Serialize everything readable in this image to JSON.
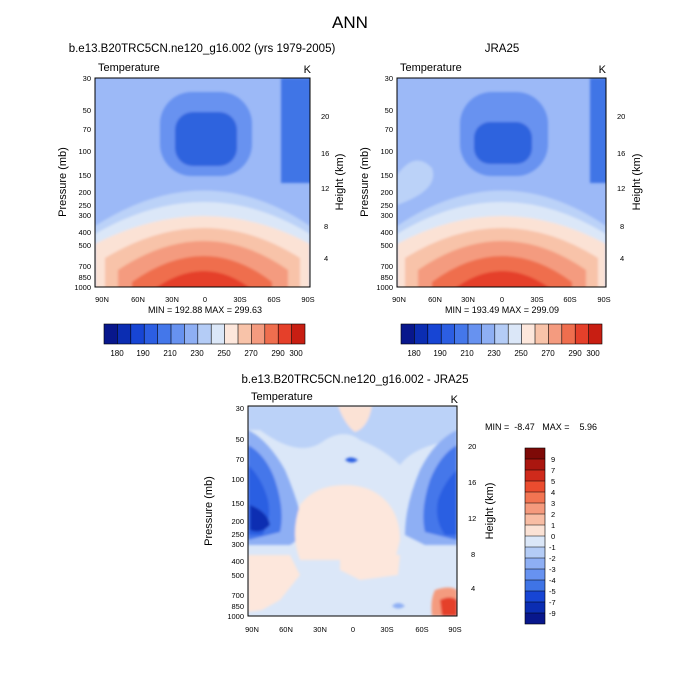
{
  "figure": {
    "title": "ANN"
  },
  "chart_data": [
    {
      "type": "heatmap",
      "title": "b.e13.B20TRC5CN.ne120_g16.002 (yrs 1979-2005)",
      "left_string": "Temperature",
      "right_string": "K",
      "ylabel": "Pressure (mb)",
      "ylabel_right": "Height (km)",
      "x_ticks": [
        "90N",
        "60N",
        "30N",
        "0",
        "30S",
        "60S",
        "90S"
      ],
      "y_ticks": [
        "30",
        "50",
        "70",
        "100",
        "150",
        "200",
        "250",
        "300",
        "400",
        "500",
        "700",
        "850",
        "1000"
      ],
      "y_right_ticks": [
        "20",
        "16",
        "12",
        "8",
        "4"
      ],
      "min_max": "MIN = 192.88   MAX = 299.63",
      "colorbar_labels": [
        "180",
        "190",
        "210",
        "230",
        "250",
        "270",
        "290",
        "300"
      ],
      "grid": false
    },
    {
      "type": "heatmap",
      "title": "JRA25",
      "left_string": "Temperature",
      "right_string": "K",
      "ylabel": "Pressure (mb)",
      "ylabel_right": "Height (km)",
      "x_ticks": [
        "90N",
        "60N",
        "30N",
        "0",
        "30S",
        "60S",
        "90S"
      ],
      "y_ticks": [
        "30",
        "50",
        "70",
        "100",
        "150",
        "200",
        "250",
        "300",
        "400",
        "500",
        "700",
        "850",
        "1000"
      ],
      "y_right_ticks": [
        "20",
        "16",
        "12",
        "8",
        "4"
      ],
      "min_max": "MIN = 193.49   MAX = 299.09",
      "colorbar_labels": [
        "180",
        "190",
        "210",
        "230",
        "250",
        "270",
        "290",
        "300"
      ],
      "grid": false
    },
    {
      "type": "heatmap",
      "title": "b.e13.B20TRC5CN.ne120_g16.002 - JRA25",
      "left_string": "Temperature",
      "right_string": "K",
      "ylabel": "Pressure (mb)",
      "ylabel_right": "Height (km)",
      "x_ticks": [
        "90N",
        "60N",
        "30N",
        "0",
        "30S",
        "60S",
        "90S"
      ],
      "y_ticks": [
        "30",
        "50",
        "70",
        "100",
        "150",
        "200",
        "250",
        "300",
        "400",
        "500",
        "700",
        "850",
        "1000"
      ],
      "y_right_ticks": [
        "20",
        "16",
        "12",
        "8",
        "4"
      ],
      "min_max": "MIN =  -8.47   MAX =    5.96",
      "colorbar_labels": [
        "9",
        "7",
        "5",
        "4",
        "3",
        "2",
        "1",
        "0",
        "-1",
        "-2",
        "-3",
        "-4",
        "-5",
        "-7",
        "-9"
      ],
      "grid": false
    }
  ]
}
